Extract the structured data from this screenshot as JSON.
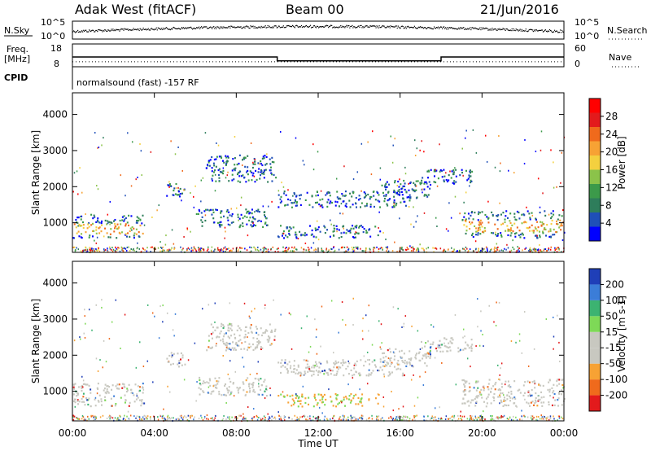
{
  "header": {
    "station": "Adak West (fitACF)",
    "beam": "Beam 00",
    "date": "21/Jun/2016"
  },
  "labels": {
    "nsky": "N.Sky",
    "nsearch": "N.Search",
    "freq_line1": "Freq.",
    "freq_line2": "[MHz]",
    "nave": "Nave",
    "cpid": "CPID",
    "cpid_text": "normalsound (fast) -157 RF"
  },
  "colors": {
    "power": [
      "#0000ff",
      "#1f4fb8",
      "#2e7d5b",
      "#3c9a4a",
      "#8bc34a",
      "#f4d03f",
      "#f7a234",
      "#f06a1c",
      "#e31a1c",
      "#ff0000"
    ],
    "velocity": [
      "#e31a1c",
      "#f06a1c",
      "#f7a234",
      "#c8c8c0",
      "#c8c8c0",
      "#7ed957",
      "#3cb371",
      "#3b7dd8",
      "#1f3fb8"
    ]
  },
  "chart_data": [
    {
      "type": "line",
      "name": "noise-panel",
      "left_axis": {
        "label": "N.Sky",
        "ticks": [
          "10^5",
          "10^0"
        ]
      },
      "right_axis": {
        "label": "N.Search",
        "ticks": [
          "10^5",
          "10^0"
        ]
      },
      "x": {
        "range": [
          "00:00",
          "24:00"
        ]
      }
    },
    {
      "type": "line",
      "name": "freq-panel",
      "left_axis": {
        "label": "Freq. [MHz]",
        "ticks": [
          "18",
          "8"
        ]
      },
      "right_axis": {
        "label": "Nave",
        "ticks": [
          "60",
          "0"
        ]
      },
      "series": [
        {
          "name": "Freq.",
          "x": [
            0,
            10,
            10,
            18,
            18,
            24
          ],
          "values": [
            12.3,
            12.3,
            10.6,
            10.6,
            12.3,
            12.3
          ]
        },
        {
          "name": "Nave",
          "x": [
            0,
            24
          ],
          "values": [
            13,
            13
          ]
        }
      ]
    },
    {
      "type": "heatmap",
      "name": "power-panel",
      "ylabel": "Slant Range [km]",
      "yticks": [
        "4000",
        "3000",
        "2000",
        "1000"
      ],
      "ylim": [
        180,
        4600
      ],
      "xlim": [
        0,
        24
      ],
      "colorbar": {
        "label": "Power [dB]",
        "ticks": [
          "28",
          "24",
          "20",
          "16",
          "12",
          "8",
          "4"
        ],
        "range": [
          0,
          30
        ]
      }
    },
    {
      "type": "heatmap",
      "name": "velocity-panel",
      "ylabel": "Slant Range [km]",
      "yticks": [
        "4000",
        "3000",
        "2000",
        "1000"
      ],
      "ylim": [
        180,
        4600
      ],
      "xlim": [
        0,
        24
      ],
      "xlabel": "Time UT",
      "xticks": [
        "00:00",
        "04:00",
        "08:00",
        "12:00",
        "16:00",
        "20:00",
        "00:00"
      ],
      "colorbar": {
        "label": "Velocity [m s-1]",
        "ticks": [
          "200",
          "100",
          "50",
          "15",
          "-15",
          "-50",
          "-100",
          "-200"
        ]
      }
    }
  ]
}
